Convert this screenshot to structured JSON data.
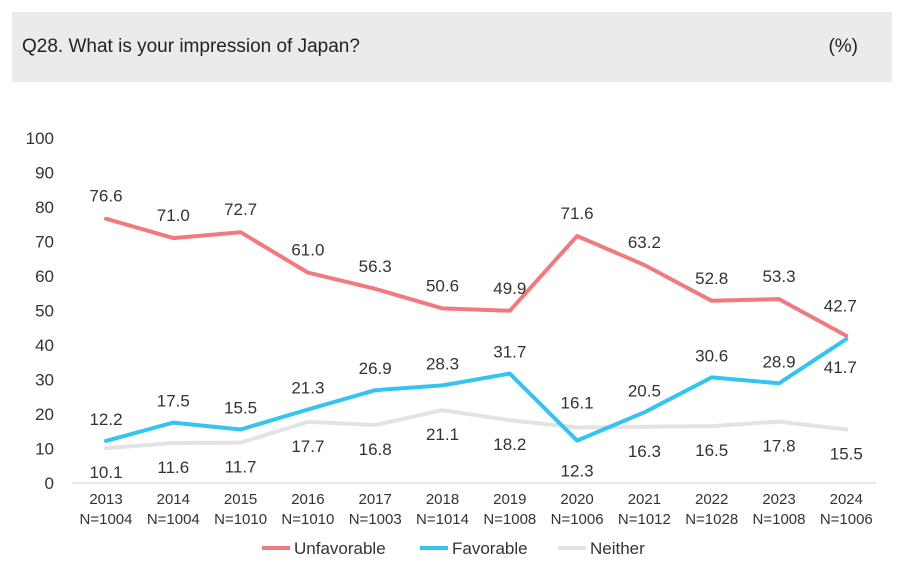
{
  "header": {
    "title": "Q28. What is your impression of Japan?",
    "unit": "(%)"
  },
  "colors": {
    "unfavorable": "#f07a7f",
    "favorable": "#35c3ef",
    "neither": "#e3e3e3"
  },
  "chart_data": {
    "type": "line",
    "title": "Q28. What is your impression of Japan?",
    "ylabel": "(%)",
    "ylim": [
      0,
      100
    ],
    "yticks": [
      0,
      10,
      20,
      30,
      40,
      50,
      60,
      70,
      80,
      90,
      100
    ],
    "grid": false,
    "legend": "bottom",
    "categories": [
      "2013",
      "2014",
      "2015",
      "2016",
      "2017",
      "2018",
      "2019",
      "2020",
      "2021",
      "2022",
      "2023",
      "2024"
    ],
    "sample_sizes": [
      "N=1004",
      "N=1004",
      "N=1010",
      "N=1010",
      "N=1003",
      "N=1014",
      "N=1008",
      "N=1006",
      "N=1012",
      "N=1028",
      "N=1008",
      "N=1006"
    ],
    "series": [
      {
        "name": "Unfavorable",
        "color": "#f07a7f",
        "values": [
          76.6,
          71.0,
          72.7,
          61.0,
          56.3,
          50.6,
          49.9,
          71.6,
          63.2,
          52.8,
          53.3,
          42.7
        ],
        "labels": [
          "76.6",
          "71.0",
          "72.7",
          "61.0",
          "56.3",
          "50.6",
          "49.9",
          "71.6",
          "63.2",
          "52.8",
          "53.3",
          "42.7"
        ]
      },
      {
        "name": "Favorable",
        "color": "#35c3ef",
        "values": [
          12.2,
          17.5,
          15.5,
          21.3,
          26.9,
          28.3,
          31.7,
          12.3,
          20.5,
          30.6,
          28.9,
          41.7
        ],
        "labels": [
          "12.2",
          "17.5",
          "15.5",
          "21.3",
          "26.9",
          "28.3",
          "31.7",
          "12.3",
          "20.5",
          "30.6",
          "28.9",
          "41.7"
        ]
      },
      {
        "name": "Neither",
        "color": "#e3e3e3",
        "values": [
          10.1,
          11.6,
          11.7,
          17.7,
          16.8,
          21.1,
          18.2,
          16.1,
          16.3,
          16.5,
          17.8,
          15.5
        ],
        "labels": [
          "10.1",
          "11.6",
          "11.7",
          "17.7",
          "16.8",
          "21.1",
          "18.2",
          "16.1",
          "16.3",
          "16.5",
          "17.8",
          "15.5"
        ]
      }
    ]
  }
}
